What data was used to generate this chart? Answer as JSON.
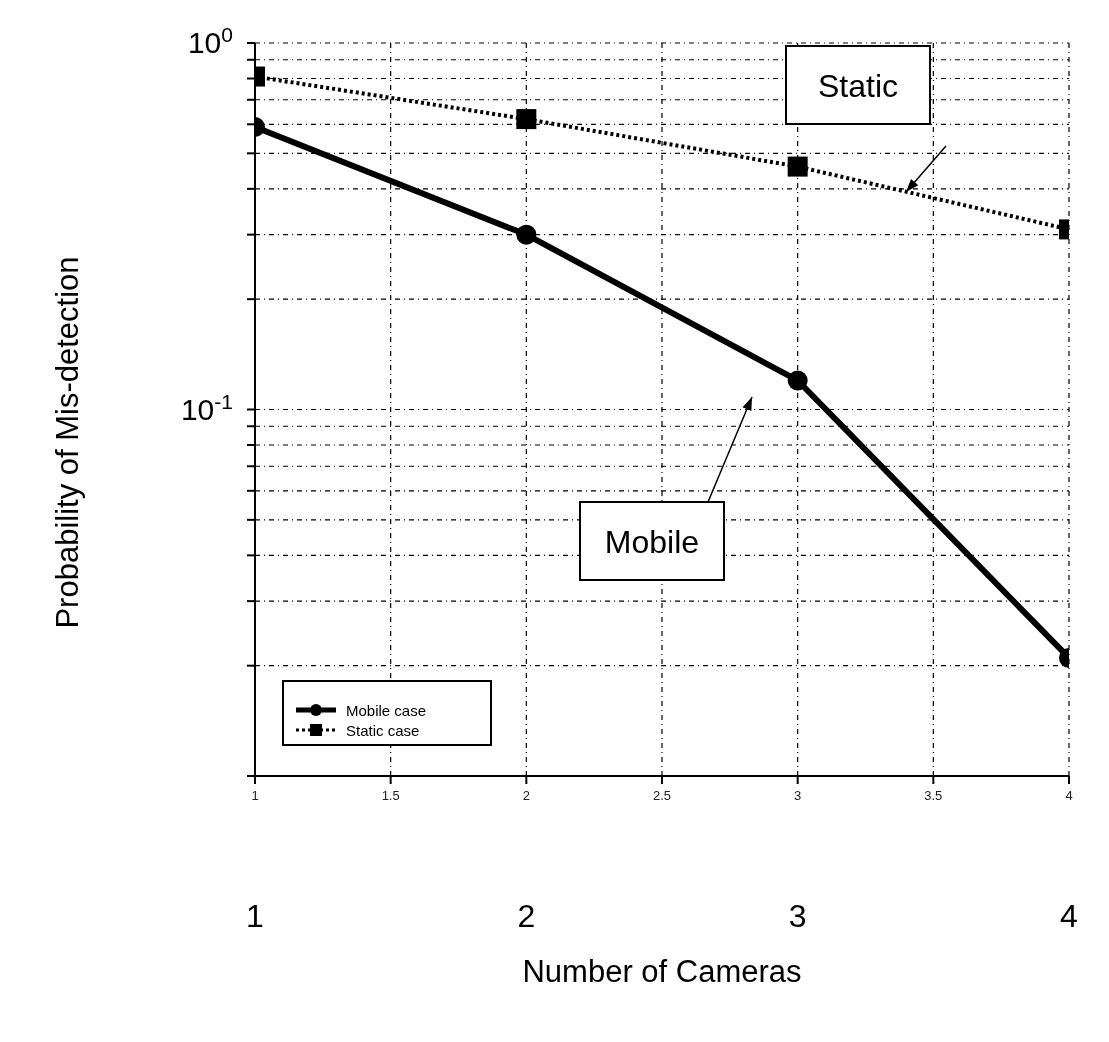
{
  "chart_data": {
    "type": "line",
    "xlabel": "Number of Cameras",
    "ylabel": "Probability of Mis-detection",
    "x": [
      1,
      2,
      3,
      4
    ],
    "series": [
      {
        "name": "Mobile case",
        "color": "#000000",
        "values": [
          0.59,
          0.3,
          0.12,
          0.021
        ],
        "marker": "circle",
        "line_style": "solid"
      },
      {
        "name": "Static case",
        "color": "#000000",
        "values": [
          0.81,
          0.62,
          0.46,
          0.31
        ],
        "marker": "square",
        "line_style": "dotted"
      }
    ],
    "log": "y",
    "xlim": [
      1,
      4
    ],
    "xticks": [
      1,
      1.5,
      2,
      2.5,
      3,
      3.5,
      4
    ],
    "ylim": [
      0.01,
      1
    ],
    "yticks": [
      {
        "value": 1,
        "label": "10$^{0}$"
      },
      {
        "value": 0.9,
        "label": null
      },
      {
        "value": 0.8,
        "label": null
      },
      {
        "value": 0.7,
        "label": null
      },
      {
        "value": 0.6,
        "label": null
      },
      {
        "value": 0.5,
        "label": null
      },
      {
        "value": 0.4,
        "label": null
      },
      {
        "value": 0.3,
        "label": null
      },
      {
        "value": 0.2,
        "label": null
      },
      {
        "value": 0.1,
        "label": "10$^{-1}$"
      },
      {
        "value": 0.09,
        "label": null
      },
      {
        "value": 0.08,
        "label": null
      },
      {
        "value": 0.07,
        "label": null
      },
      {
        "value": 0.06,
        "label": null
      },
      {
        "value": 0.05,
        "label": null
      },
      {
        "value": 0.04,
        "label": null
      },
      {
        "value": 0.03,
        "label": null
      },
      {
        "value": 0.02,
        "label": null
      },
      {
        "value": 0.01,
        "label": null
      }
    ],
    "grid": true,
    "legend": "bottom left",
    "annotations": [
      "Static",
      "Mobile",
      "1",
      "2",
      "3",
      "4"
    ]
  }
}
